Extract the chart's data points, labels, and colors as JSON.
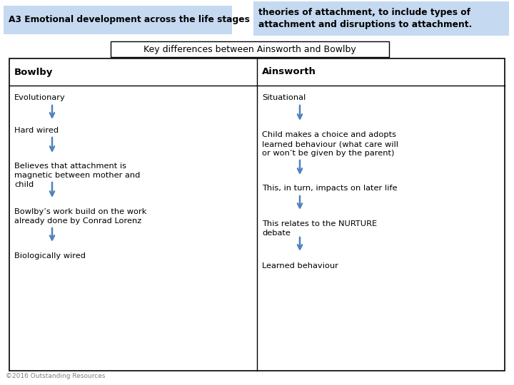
{
  "title_left": "A3 Emotional development across the life stages",
  "title_right": "theories of attachment, to include types of\nattachment and disruptions to attachment.",
  "subtitle": "Key differences between Ainsworth and Bowlby",
  "col_headers": [
    "Bowlby",
    "Ainsworth"
  ],
  "bowlby_items": [
    "Evolutionary",
    "Hard wired",
    "Believes that attachment is\nmagnetic between mother and\nchild",
    "Bowlby’s work build on the work\nalready done by Conrad Lorenz",
    "Biologically wired"
  ],
  "ainsworth_items": [
    "Situational",
    "Child makes a choice and adopts\nlearned behaviour (what care will\nor won’t be given by the parent)",
    "This, in turn, impacts on later life",
    "This relates to the NURTURE\ndebate",
    "Learned behaviour"
  ],
  "footer": "©2016 Outstanding Resources",
  "bg_color": "#ffffff",
  "header_bg_left": "#c5d9f1",
  "header_bg_right": "#c5d9f1",
  "arrow_color": "#4f81bd",
  "font_family": "DejaVu Sans"
}
